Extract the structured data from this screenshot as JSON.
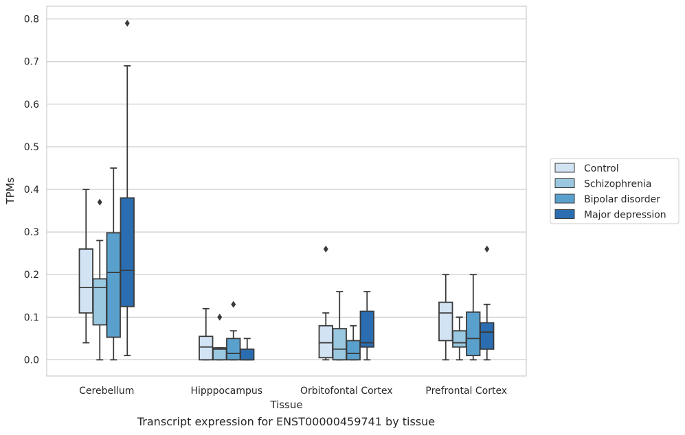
{
  "caption": "Transcript expression for ENST00000459741 by tissue",
  "chart_data": {
    "type": "box",
    "xlabel": "Tissue",
    "ylabel": "TPMs",
    "ylim": [
      -0.038,
      0.83
    ],
    "yticks": [
      0.0,
      0.1,
      0.2,
      0.3,
      0.4,
      0.5,
      0.6,
      0.7,
      0.8
    ],
    "ytick_labels": [
      "0.0",
      "0.1",
      "0.2",
      "0.3",
      "0.4",
      "0.5",
      "0.6",
      "0.7",
      "0.8"
    ],
    "grid": "horizontal",
    "legend_position": "right",
    "categories": [
      "Cerebellum",
      "Hipppocampus",
      "Orbitofontal Cortex",
      "Prefrontal Cortex"
    ],
    "series": [
      {
        "name": "Control",
        "color": "#d2e3f3",
        "boxes": [
          {
            "whisker_low": 0.04,
            "q1": 0.11,
            "median": 0.17,
            "q3": 0.26,
            "whisker_high": 0.4,
            "outliers": []
          },
          {
            "whisker_low": 0.0,
            "q1": 0.0,
            "median": 0.03,
            "q3": 0.055,
            "whisker_high": 0.12,
            "outliers": []
          },
          {
            "whisker_low": 0.0,
            "q1": 0.005,
            "median": 0.04,
            "q3": 0.08,
            "whisker_high": 0.11,
            "outliers": [
              0.26
            ]
          },
          {
            "whisker_low": 0.0,
            "q1": 0.045,
            "median": 0.11,
            "q3": 0.135,
            "whisker_high": 0.2,
            "outliers": []
          }
        ]
      },
      {
        "name": "Schizophrenia",
        "color": "#9ac8e0",
        "boxes": [
          {
            "whisker_low": 0.0,
            "q1": 0.082,
            "median": 0.17,
            "q3": 0.19,
            "whisker_high": 0.28,
            "outliers": [
              0.37
            ]
          },
          {
            "whisker_low": 0.0,
            "q1": 0.0,
            "median": 0.025,
            "q3": 0.028,
            "whisker_high": 0.028,
            "outliers": [
              0.1
            ]
          },
          {
            "whisker_low": 0.0,
            "q1": 0.0,
            "median": 0.025,
            "q3": 0.073,
            "whisker_high": 0.16,
            "outliers": []
          },
          {
            "whisker_low": 0.0,
            "q1": 0.03,
            "median": 0.04,
            "q3": 0.068,
            "whisker_high": 0.1,
            "outliers": []
          }
        ]
      },
      {
        "name": "Bipolar disorder",
        "color": "#5aa0cd",
        "boxes": [
          {
            "whisker_low": 0.0,
            "q1": 0.053,
            "median": 0.205,
            "q3": 0.298,
            "whisker_high": 0.45,
            "outliers": []
          },
          {
            "whisker_low": 0.0,
            "q1": 0.0,
            "median": 0.015,
            "q3": 0.05,
            "whisker_high": 0.068,
            "outliers": [
              0.13
            ]
          },
          {
            "whisker_low": 0.0,
            "q1": 0.0,
            "median": 0.015,
            "q3": 0.045,
            "whisker_high": 0.08,
            "outliers": []
          },
          {
            "whisker_low": 0.0,
            "q1": 0.01,
            "median": 0.05,
            "q3": 0.112,
            "whisker_high": 0.2,
            "outliers": []
          }
        ]
      },
      {
        "name": "Major depression",
        "color": "#2a6db0",
        "boxes": [
          {
            "whisker_low": 0.01,
            "q1": 0.125,
            "median": 0.21,
            "q3": 0.38,
            "whisker_high": 0.69,
            "outliers": [
              0.79
            ]
          },
          {
            "whisker_low": 0.0,
            "q1": 0.0,
            "median": 0.0,
            "q3": 0.025,
            "whisker_high": 0.05,
            "outliers": []
          },
          {
            "whisker_low": 0.0,
            "q1": 0.03,
            "median": 0.04,
            "q3": 0.114,
            "whisker_high": 0.16,
            "outliers": []
          },
          {
            "whisker_low": 0.0,
            "q1": 0.025,
            "median": 0.065,
            "q3": 0.087,
            "whisker_high": 0.13,
            "outliers": [
              0.26
            ]
          }
        ]
      }
    ]
  }
}
